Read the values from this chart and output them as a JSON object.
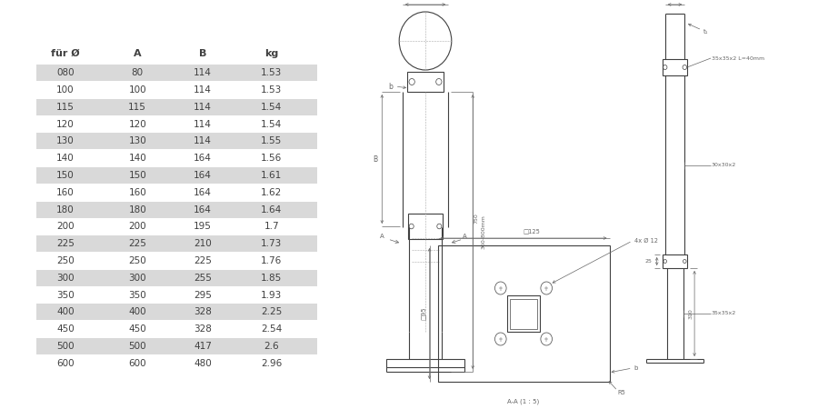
{
  "table_headers": [
    "für Ø",
    "A",
    "B",
    "kg"
  ],
  "table_rows": [
    [
      "080",
      "80",
      "114",
      "1.53"
    ],
    [
      "100",
      "100",
      "114",
      "1.53"
    ],
    [
      "115",
      "115",
      "114",
      "1.54"
    ],
    [
      "120",
      "120",
      "114",
      "1.54"
    ],
    [
      "130",
      "130",
      "114",
      "1.55"
    ],
    [
      "140",
      "140",
      "164",
      "1.56"
    ],
    [
      "150",
      "150",
      "164",
      "1.61"
    ],
    [
      "160",
      "160",
      "164",
      "1.62"
    ],
    [
      "180",
      "180",
      "164",
      "1.64"
    ],
    [
      "200",
      "200",
      "195",
      "1.7"
    ],
    [
      "225",
      "225",
      "210",
      "1.73"
    ],
    [
      "250",
      "250",
      "225",
      "1.76"
    ],
    [
      "300",
      "300",
      "255",
      "1.85"
    ],
    [
      "350",
      "350",
      "295",
      "1.93"
    ],
    [
      "400",
      "400",
      "328",
      "2.25"
    ],
    [
      "450",
      "450",
      "328",
      "2.54"
    ],
    [
      "500",
      "500",
      "417",
      "2.6"
    ],
    [
      "600",
      "600",
      "480",
      "2.96"
    ]
  ],
  "shaded_rows": [
    0,
    2,
    4,
    6,
    8,
    10,
    12,
    14,
    16
  ],
  "row_bg_shaded": "#d9d9d9",
  "text_color": "#404040",
  "bg_color": "#ffffff",
  "line_color": "#404040",
  "dim_color": "#666666"
}
